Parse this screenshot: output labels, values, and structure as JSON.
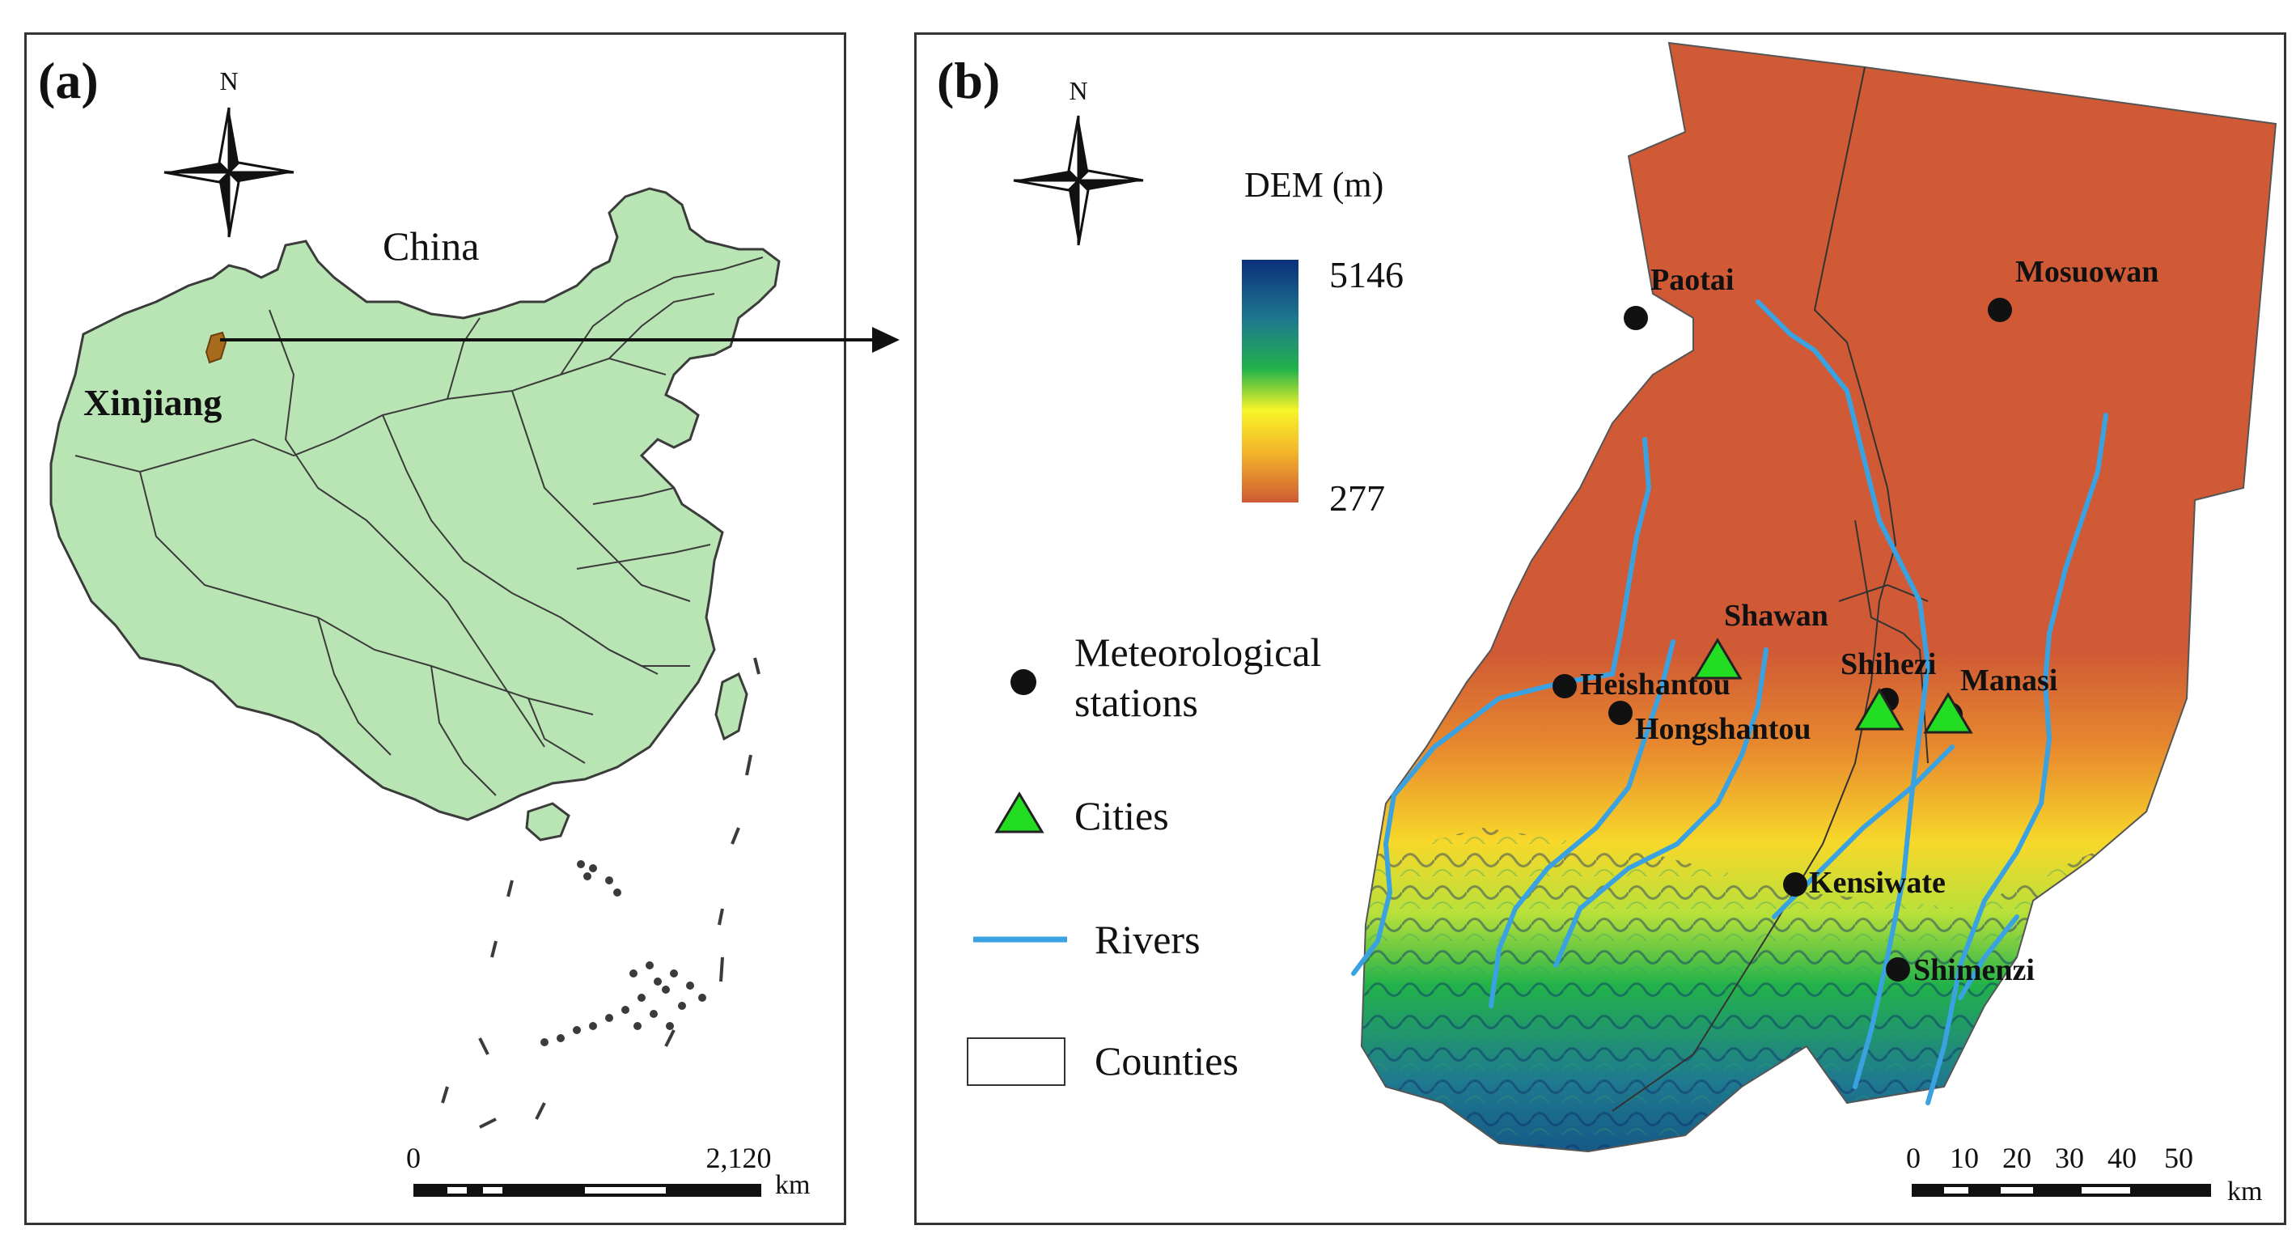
{
  "panel_a": {
    "label": "(a)",
    "north": "N",
    "country_label": "China",
    "region_label": "Xinjiang",
    "scale": {
      "start": "0",
      "end": "2,120",
      "unit": "km"
    },
    "colors": {
      "land": "#b9e5b4",
      "border": "#3b3b3b",
      "study_area": "#a86b1e"
    }
  },
  "panel_b": {
    "label": "(b)",
    "north": "N",
    "dem": {
      "title": "DEM (m)",
      "max": "5146",
      "min": "277",
      "ramp": [
        "#0b2f7a",
        "#1f7a8f",
        "#22b24a",
        "#f7f528",
        "#f2b229",
        "#cf5a35"
      ]
    },
    "stations": [
      {
        "name": "Paotai"
      },
      {
        "name": "Mosuowan"
      },
      {
        "name": "Heishantou"
      },
      {
        "name": "Hongshantou"
      },
      {
        "name": "Shihezi"
      },
      {
        "name": "Manasi"
      },
      {
        "name": "Kensiwate"
      },
      {
        "name": "Shimenzi"
      }
    ],
    "cities": [
      {
        "name": "Shawan"
      }
    ],
    "legend": {
      "stations": "Meteorological stations",
      "stations_line1": "Meteorological",
      "stations_line2": "stations",
      "cities": "Cities",
      "rivers": "Rivers",
      "counties": "Counties"
    },
    "scale": {
      "ticks": [
        "0",
        "10",
        "20",
        "30",
        "40",
        "50"
      ],
      "unit": "km"
    },
    "colors": {
      "lowland": "#c9563a",
      "river": "#3aa2e0",
      "city": "#22dd22",
      "county_line": "#333333"
    }
  }
}
